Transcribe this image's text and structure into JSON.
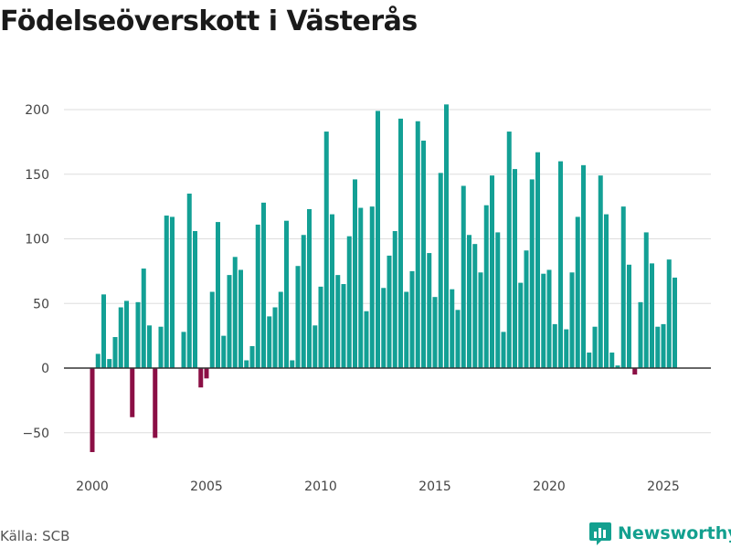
{
  "header": {
    "title": "Födelseöverskott i Västerås"
  },
  "footer": {
    "source": "Källa: SCB",
    "brand": "Newsworthy"
  },
  "colors": {
    "positive": "#13a095",
    "negative": "#8b0f45",
    "grid": "#dddddd",
    "zero_line": "#333333",
    "brand": "#13a08f"
  },
  "chart_data": {
    "type": "bar",
    "title": "Födelseöverskott i Västerås",
    "xlabel": "",
    "ylabel": "",
    "x_start": 2000.0,
    "x_step": 0.25,
    "values": [
      -65,
      11,
      57,
      7,
      24,
      47,
      52,
      -38,
      51,
      77,
      33,
      -54,
      32,
      118,
      117,
      0,
      28,
      135,
      106,
      -15,
      -8,
      59,
      113,
      25,
      72,
      86,
      76,
      6,
      17,
      111,
      128,
      40,
      47,
      59,
      114,
      6,
      79,
      103,
      123,
      33,
      63,
      183,
      119,
      72,
      65,
      102,
      146,
      124,
      44,
      125,
      199,
      62,
      87,
      106,
      193,
      59,
      75,
      191,
      176,
      89,
      55,
      151,
      204,
      61,
      45,
      141,
      103,
      96,
      74,
      126,
      149,
      105,
      28,
      183,
      154,
      66,
      91,
      146,
      167,
      73,
      76,
      34,
      160,
      30,
      74,
      117,
      157,
      12,
      32,
      149,
      119,
      12,
      2,
      125,
      80,
      -5,
      51,
      105,
      81,
      32,
      34,
      84,
      70
    ],
    "ylim": [
      -60,
      215
    ],
    "y_ticks": [
      -50,
      0,
      50,
      100,
      150,
      200
    ],
    "y_tick_labels": [
      "−50",
      "0",
      "50",
      "100",
      "150",
      "200"
    ],
    "x_ticks": [
      2000,
      2005,
      2010,
      2015,
      2020,
      2025
    ],
    "x_tick_labels": [
      "2000",
      "2005",
      "2010",
      "2015",
      "2020",
      "2025"
    ],
    "grid": true,
    "legend": "none"
  }
}
